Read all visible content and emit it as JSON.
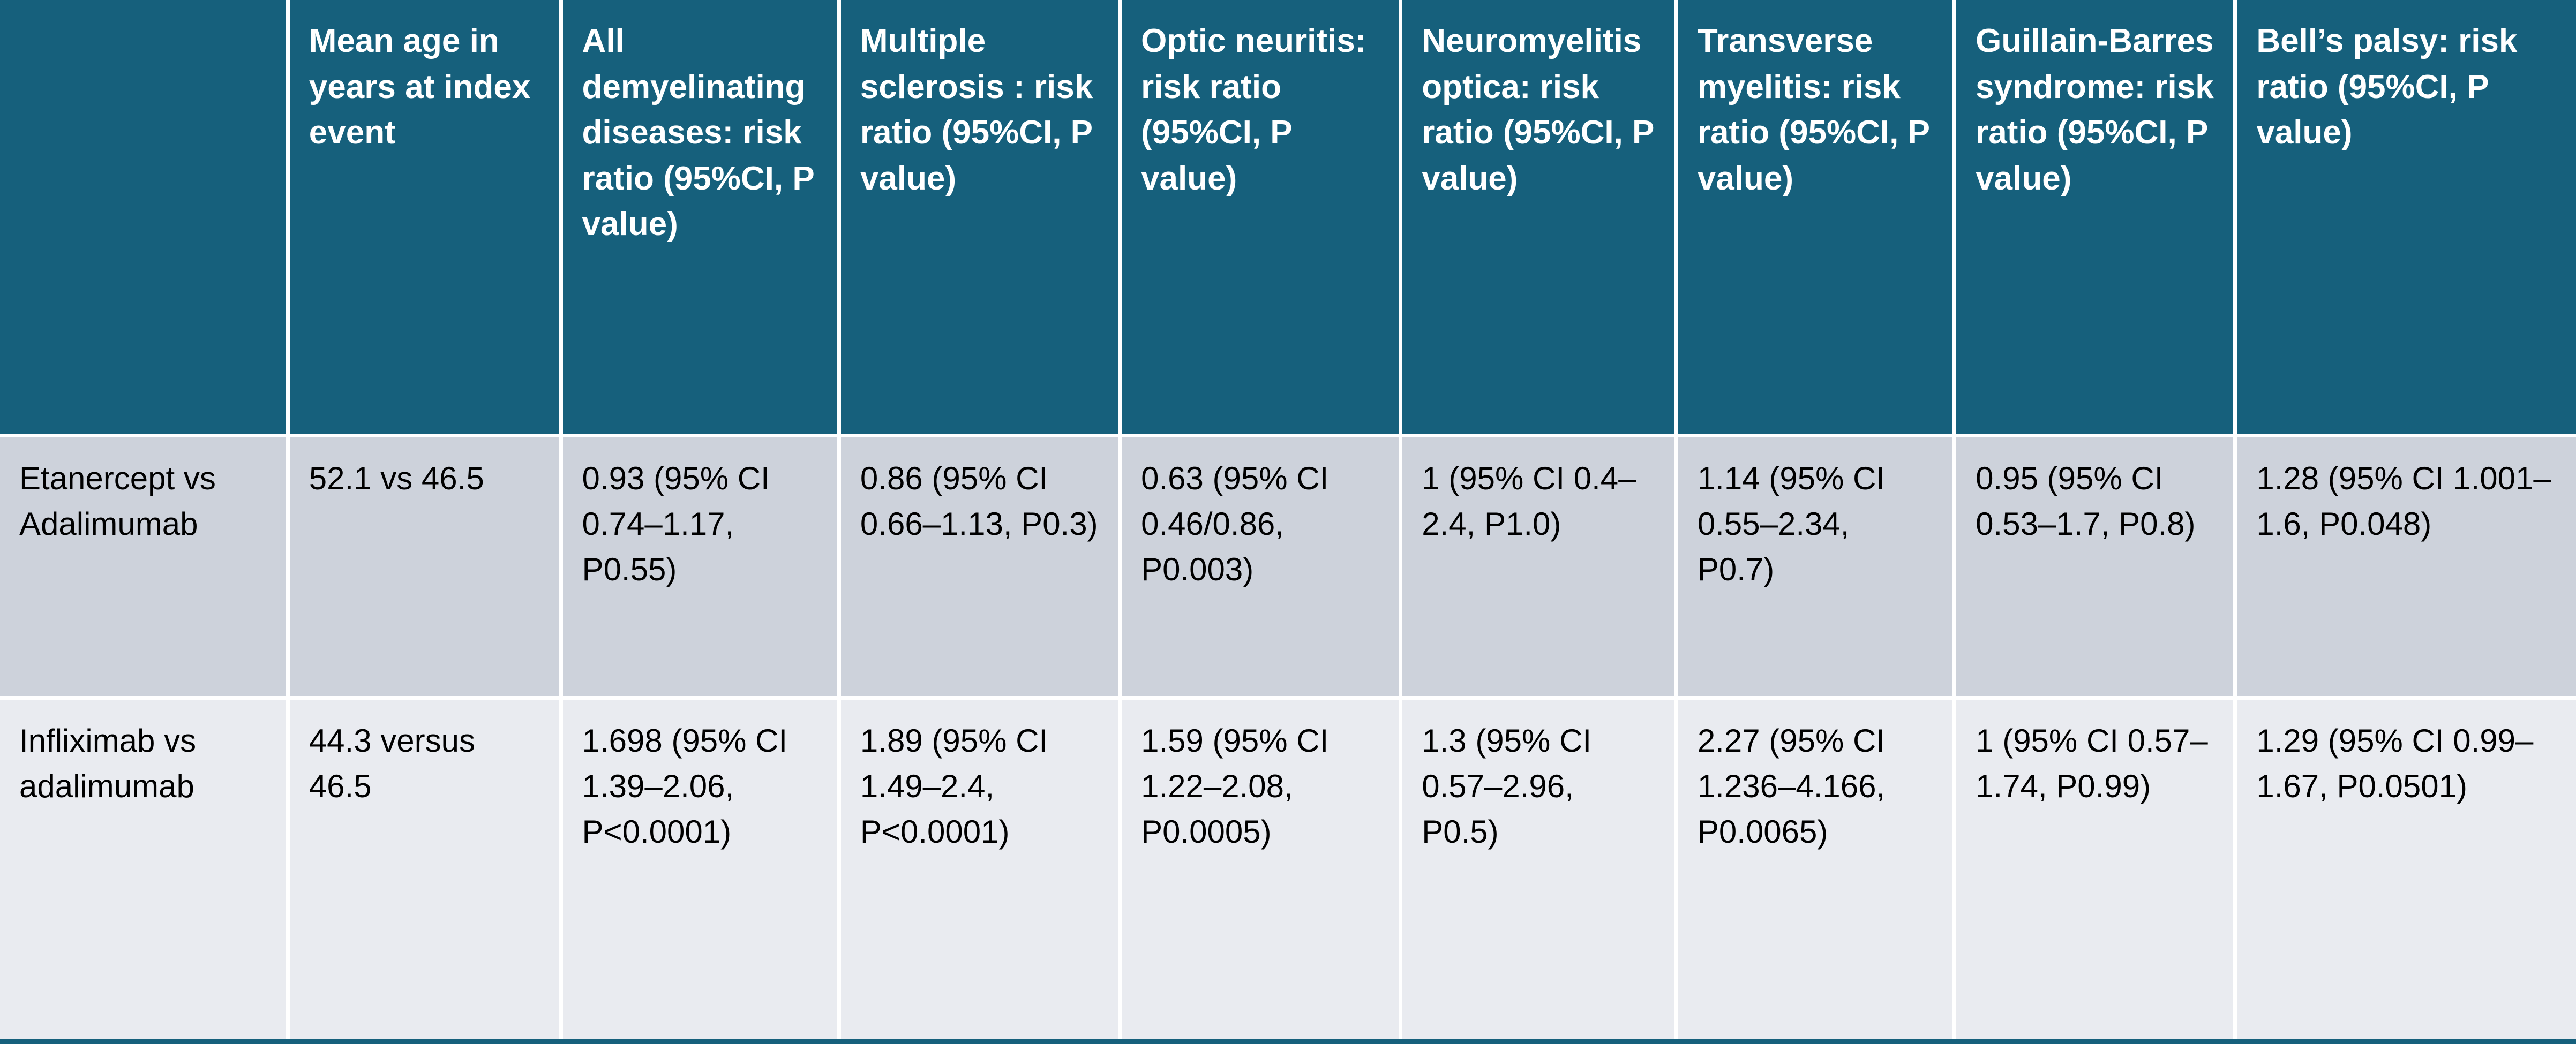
{
  "table": {
    "colors": {
      "header_bg": "#16607C",
      "row1_bg": "#CDD2DB",
      "row2_bg": "#E9EBF0",
      "header_text": "#FFFFFF",
      "body_text": "#000000",
      "divider": "#FFFFFF"
    },
    "headers": [
      "",
      "Mean age in years at index event",
      "All demyelinating diseases: risk ratio (95%CI, P value)",
      "Multiple sclerosis : risk ratio (95%CI, P value)",
      "Optic neuritis: risk ratio (95%CI, P value)",
      "Neuromyelitis optica: risk ratio (95%CI, P value)",
      "Transverse myelitis: risk ratio (95%CI, P value)",
      "Guillain-Barres syndrome: risk ratio (95%CI, P value)",
      "Bell’s palsy: risk ratio (95%CI, P value)"
    ],
    "rows": [
      {
        "cells": [
          "Etanercept vs Adalimumab",
          "52.1 vs 46.5",
          "0.93 (95% CI 0.74–1.17, P0.55)",
          "0.86 (95% CI 0.66–1.13, P0.3)",
          "0.63 (95% CI 0.46/0.86, P0.003)",
          "1 (95% CI 0.4–2.4, P1.0)",
          "1.14 (95% CI 0.55–2.34, P0.7)",
          "0.95 (95% CI 0.53–1.7, P0.8)",
          "1.28 (95% CI 1.001–1.6, P0.048)"
        ]
      },
      {
        "cells": [
          "Infliximab vs adalimumab",
          "44.3 versus 46.5",
          "1.698 (95% CI 1.39–2.06, P<0.0001)",
          "1.89 (95% CI 1.49–2.4, P<0.0001)",
          "1.59 (95% CI 1.22–2.08, P0.0005)",
          "1.3 (95% CI 0.57–2.96, P0.5)",
          "2.27 (95% CI 1.236–4.166, P0.0065)",
          "1 (95% CI 0.57–1.74, P0.99)",
          "1.29 (95% CI 0.99–1.67, P0.0501)"
        ]
      }
    ]
  }
}
